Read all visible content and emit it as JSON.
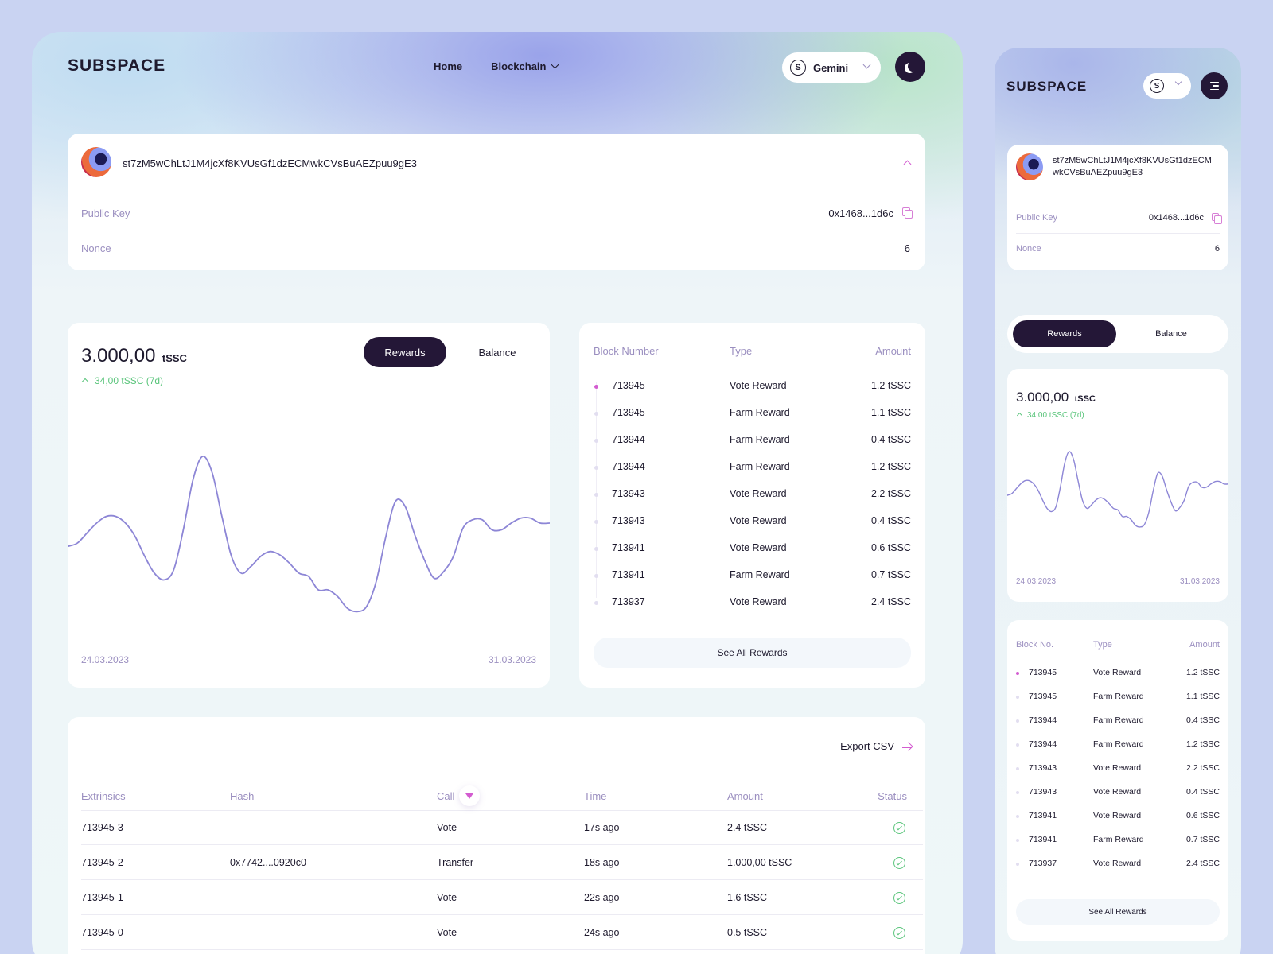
{
  "app": {
    "logo": "SUBSPACE",
    "nav": {
      "home": "Home",
      "blockchain": "Blockchain"
    },
    "network": {
      "icon": "subspace-s-icon",
      "glyph": "S",
      "label": "Gemini"
    },
    "theme_icon": "moon-icon",
    "menu_icon": "menu-icon"
  },
  "account": {
    "address": "st7zM5wChLtJ1M4jcXf8KVUsGf1dzECMwkCVsBuAEZpuu9gE3",
    "address_line1": "st7zM5wChLtJ1M4jcXf8KVUsGf1dzECM",
    "address_line2": "wkCVsBuAEZpuu9gE3",
    "public_key_label": "Public Key",
    "public_key_value": "0x1468...1d6c",
    "nonce_label": "Nonce",
    "nonce_value": "6"
  },
  "chart_card": {
    "amount": "3.000,00",
    "unit": "tSSC",
    "change": "34,00 tSSC (7d)",
    "tab_rewards": "Rewards",
    "tab_balance": "Balance",
    "date_start": "24.03.2023",
    "date_end": "31.03.2023"
  },
  "chart_data": {
    "type": "line",
    "title": "",
    "xlabel": "",
    "ylabel": "",
    "x_range": [
      "24.03.2023",
      "31.03.2023"
    ],
    "values": [
      0.46,
      0.48,
      0.54,
      0.6,
      0.64,
      0.64,
      0.6,
      0.52,
      0.4,
      0.3,
      0.26,
      0.32,
      0.56,
      0.86,
      1.0,
      0.9,
      0.64,
      0.4,
      0.3,
      0.34,
      0.4,
      0.43,
      0.41,
      0.36,
      0.3,
      0.28,
      0.2,
      0.2,
      0.16,
      0.09,
      0.07,
      0.1,
      0.25,
      0.52,
      0.73,
      0.7,
      0.53,
      0.38,
      0.27,
      0.31,
      0.4,
      0.57,
      0.62,
      0.62,
      0.56,
      0.56,
      0.6,
      0.63,
      0.63,
      0.6,
      0.6
    ],
    "grid": false,
    "legend": "none",
    "color": "#8d86d6"
  },
  "rewards": {
    "headers": {
      "block": "Block Number",
      "block_short": "Block No.",
      "type": "Type",
      "amount": "Amount"
    },
    "rows": [
      {
        "block": "713945",
        "type": "Vote Reward",
        "amount": "1.2 tSSC"
      },
      {
        "block": "713945",
        "type": "Farm Reward",
        "amount": "1.1 tSSC"
      },
      {
        "block": "713944",
        "type": "Farm Reward",
        "amount": "0.4 tSSC"
      },
      {
        "block": "713944",
        "type": "Farm Reward",
        "amount": "1.2 tSSC"
      },
      {
        "block": "713943",
        "type": "Vote Reward",
        "amount": "2.2 tSSC"
      },
      {
        "block": "713943",
        "type": "Vote Reward",
        "amount": "0.4 tSSC"
      },
      {
        "block": "713941",
        "type": "Vote Reward",
        "amount": "0.6 tSSC"
      },
      {
        "block": "713941",
        "type": "Farm Reward",
        "amount": "0.7 tSSC"
      },
      {
        "block": "713937",
        "type": "Vote Reward",
        "amount": "2.4 tSSC"
      }
    ],
    "see_all": "See All Rewards"
  },
  "extrinsics": {
    "export_label": "Export CSV",
    "headers": {
      "extrinsics": "Extrinsics",
      "hash": "Hash",
      "call": "Call",
      "time": "Time",
      "amount": "Amount",
      "status": "Status"
    },
    "rows": [
      {
        "id": "713945-3",
        "hash": "-",
        "call": "Vote",
        "time": "17s ago",
        "amount": "2.4 tSSC",
        "status": "success"
      },
      {
        "id": "713945-2",
        "hash": "0x7742....0920c0",
        "call": "Transfer",
        "time": "18s ago",
        "amount": "1.000,00 tSSC",
        "status": "success"
      },
      {
        "id": "713945-1",
        "hash": "-",
        "call": "Vote",
        "time": "22s ago",
        "amount": "1.6 tSSC",
        "status": "success"
      },
      {
        "id": "713945-0",
        "hash": "-",
        "call": "Vote",
        "time": "24s ago",
        "amount": "0.5 tSSC",
        "status": "success"
      }
    ]
  },
  "colors": {
    "background": "#c9d3f2",
    "dark": "#241737",
    "accent_pink": "#d35cd0",
    "positive": "#5bc57c",
    "muted_text": "#9b8fc0",
    "line": "#8d86d6"
  }
}
